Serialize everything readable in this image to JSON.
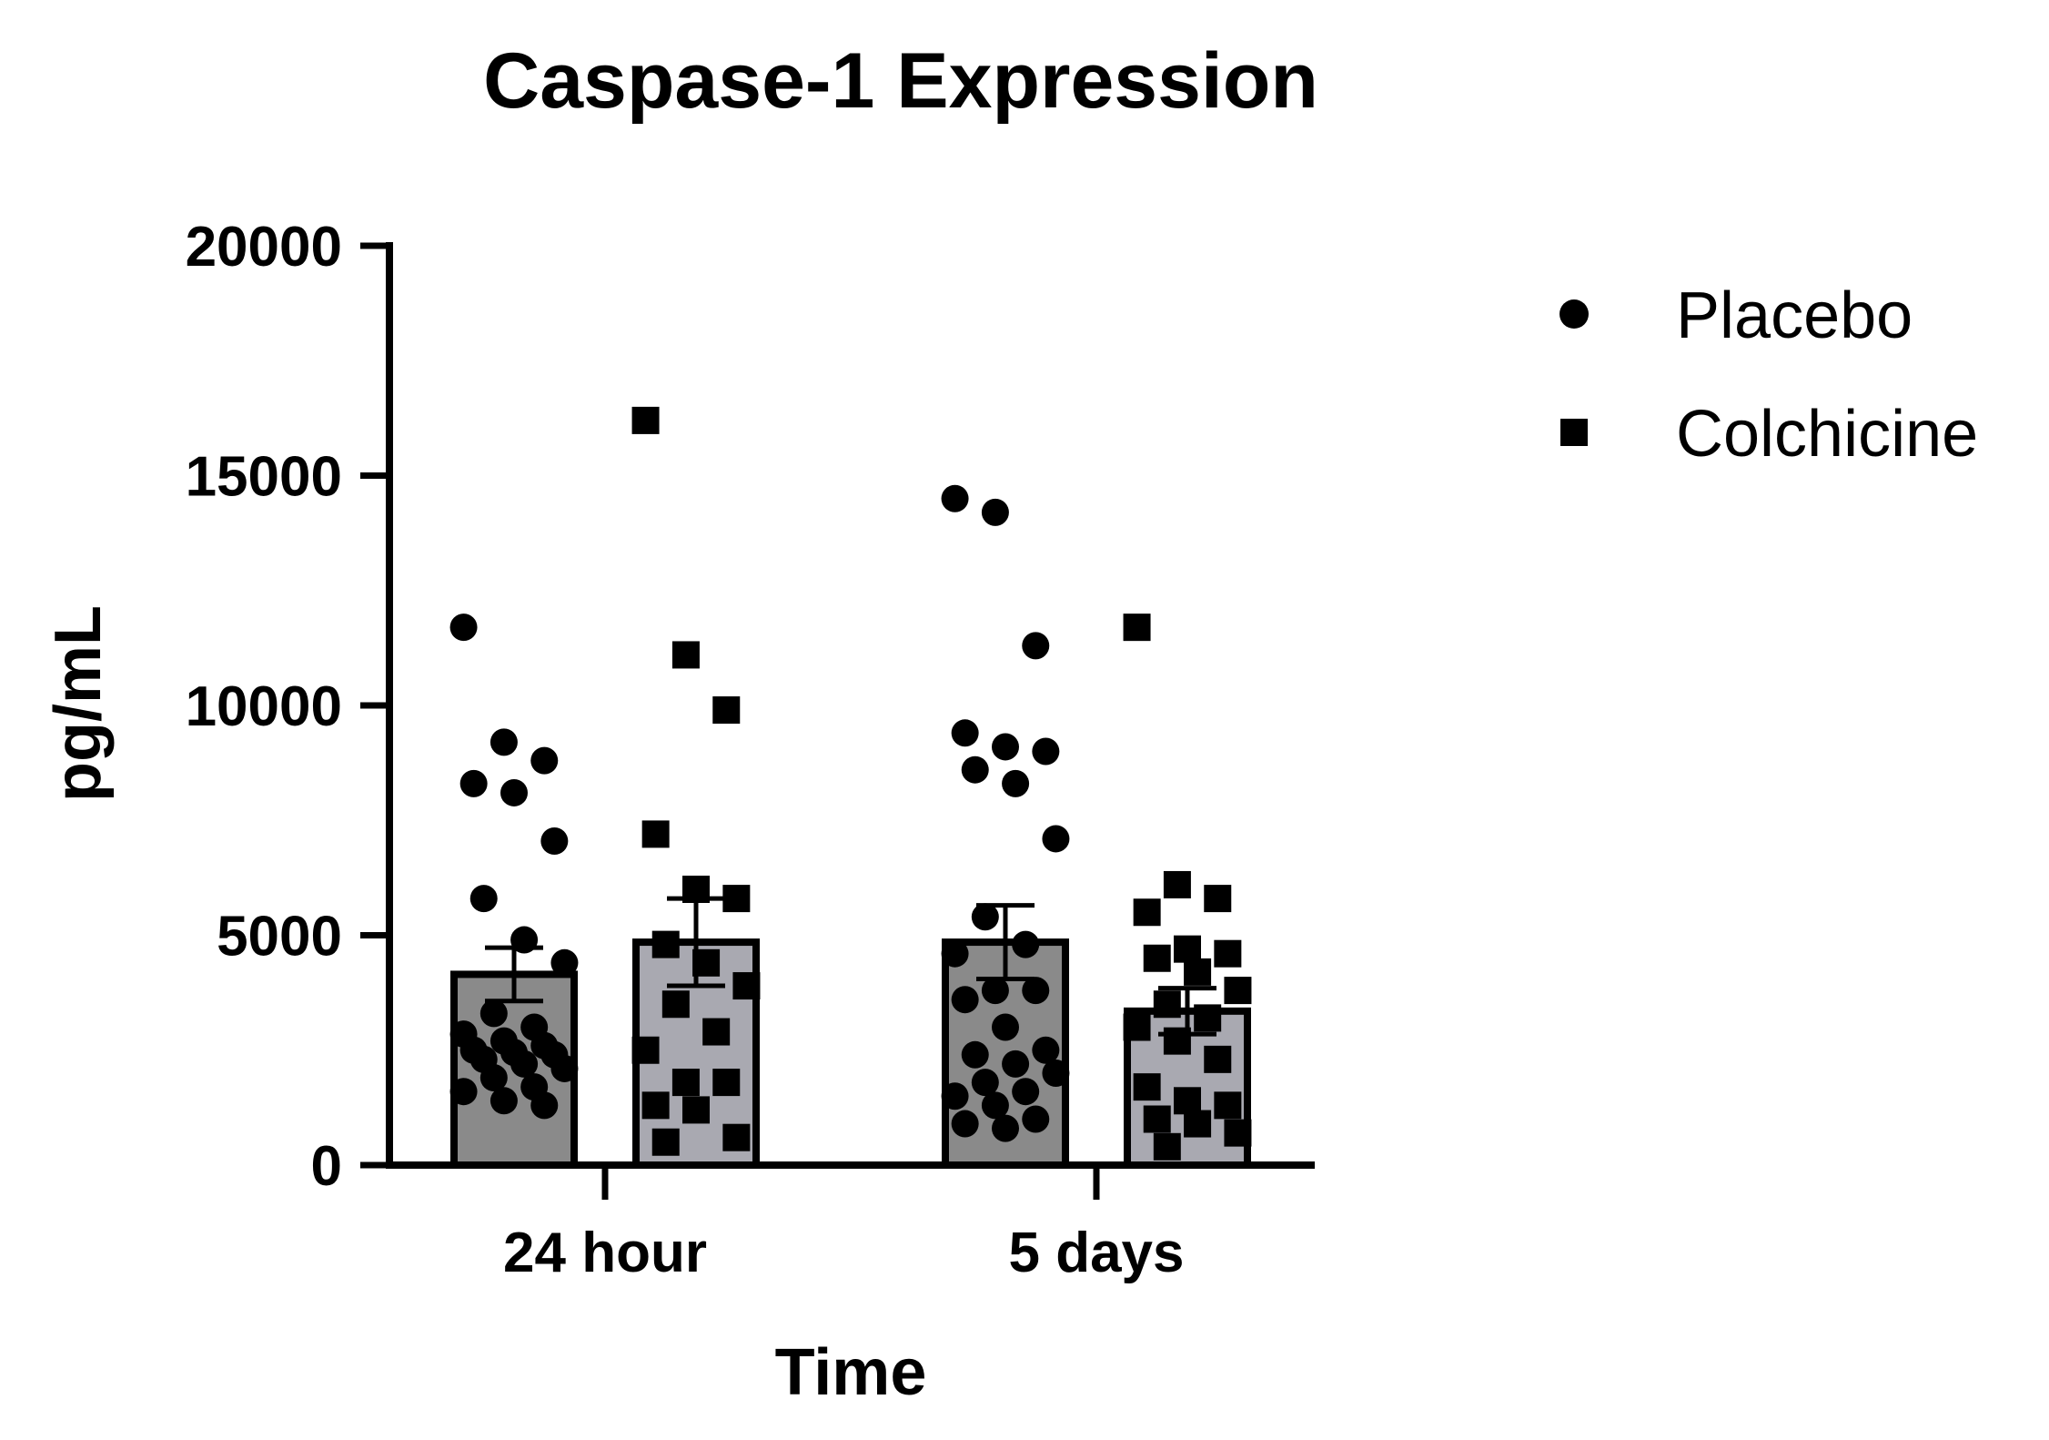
{
  "chart_data": {
    "type": "bar",
    "title": "Caspase-1 Expression",
    "xlabel": "Time",
    "ylabel": "pg/mL",
    "ylim": [
      0,
      20000
    ],
    "yticks": [
      "0",
      "5000",
      "10000",
      "15000",
      "20000"
    ],
    "categories": [
      "24 hour",
      "5 days"
    ],
    "legend_position": "right",
    "grid": false,
    "series": [
      {
        "name": "Placebo",
        "marker": "circle",
        "bar_color": "#8a8a8a",
        "means": [
          4150,
          4850
        ],
        "sem": [
          580,
          800
        ],
        "points": [
          [
            11700,
            9200,
            8800,
            8300,
            8100,
            7050,
            5800,
            4900,
            4400,
            3300,
            3000,
            2850,
            2700,
            2600,
            2500,
            2450,
            2400,
            2300,
            2200,
            2100,
            1900,
            1700,
            1600,
            1400,
            1300
          ],
          [
            14500,
            14200,
            11300,
            9400,
            9100,
            9000,
            8600,
            8300,
            7100,
            5400,
            4800,
            4600,
            3800,
            3800,
            3600,
            3000,
            2500,
            2400,
            2200,
            2000,
            1800,
            1600,
            1500,
            1300,
            1000,
            900,
            800
          ]
        ]
      },
      {
        "name": "Colchicine",
        "marker": "square",
        "bar_color": "#a9a9b1",
        "means": [
          4850,
          3350
        ],
        "sem": [
          950,
          500
        ],
        "points": [
          [
            16200,
            11100,
            9900,
            7200,
            6000,
            5800,
            4800,
            4400,
            3900,
            3500,
            2900,
            2500,
            1800,
            1800,
            1300,
            1200,
            600,
            500
          ],
          [
            11700,
            6100,
            5800,
            5500,
            4700,
            4600,
            4500,
            4200,
            3800,
            3500,
            3200,
            3000,
            2700,
            2300,
            1700,
            1400,
            1300,
            1000,
            900,
            700,
            400
          ]
        ]
      }
    ]
  }
}
